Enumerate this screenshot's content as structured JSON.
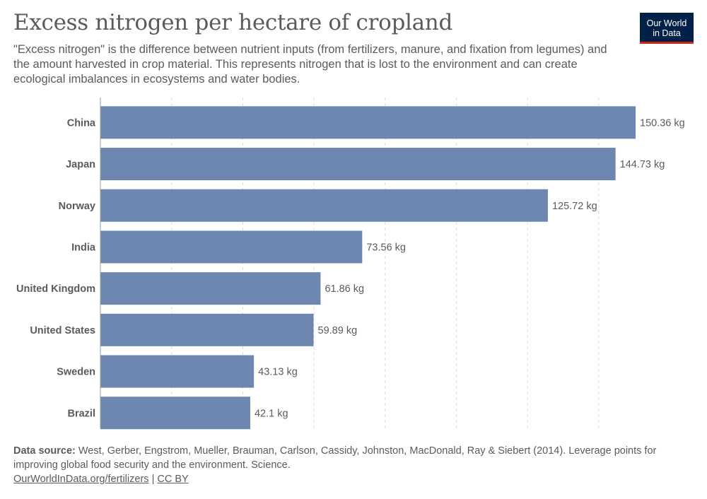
{
  "header": {
    "title": "Excess nitrogen per hectare of cropland",
    "subtitle": "\"Excess nitrogen\" is the difference between nutrient inputs (from fertilizers, manure, and fixation from legumes) and the amount harvested in crop material. This represents nitrogen that is lost to the environment and can create ecological imbalances in ecosystems and water bodies."
  },
  "logo": {
    "line1": "Our World",
    "line2": "in Data",
    "bg_color": "#002147",
    "accent_color": "#ce261e"
  },
  "chart_data": {
    "type": "bar",
    "orientation": "horizontal",
    "categories": [
      "China",
      "Japan",
      "Norway",
      "India",
      "United Kingdom",
      "United States",
      "Sweden",
      "Brazil"
    ],
    "values": [
      150.36,
      144.73,
      125.72,
      73.56,
      61.86,
      59.89,
      43.13,
      42.1
    ],
    "value_labels": [
      "150.36 kg",
      "144.73 kg",
      "125.72 kg",
      "73.56 kg",
      "61.86 kg",
      "59.89 kg",
      "43.13 kg",
      "42.1 kg"
    ],
    "xlim": [
      0,
      150.36
    ],
    "grid_values": [
      20,
      40,
      60,
      80,
      100,
      120,
      140
    ],
    "grid": "vertical dashed",
    "bar_color": "#6e87b0"
  },
  "footer": {
    "source_label": "Data source:",
    "source_text": "West, Gerber, Engstrom, Mueller, Brauman, Carlson, Cassidy, Johnston, MacDonald, Ray & Siebert (2014). Leverage points for improving global food security and the environment. Science.",
    "link_text": "OurWorldInData.org/fertilizers",
    "separator": "|",
    "license_text": "CC BY"
  }
}
